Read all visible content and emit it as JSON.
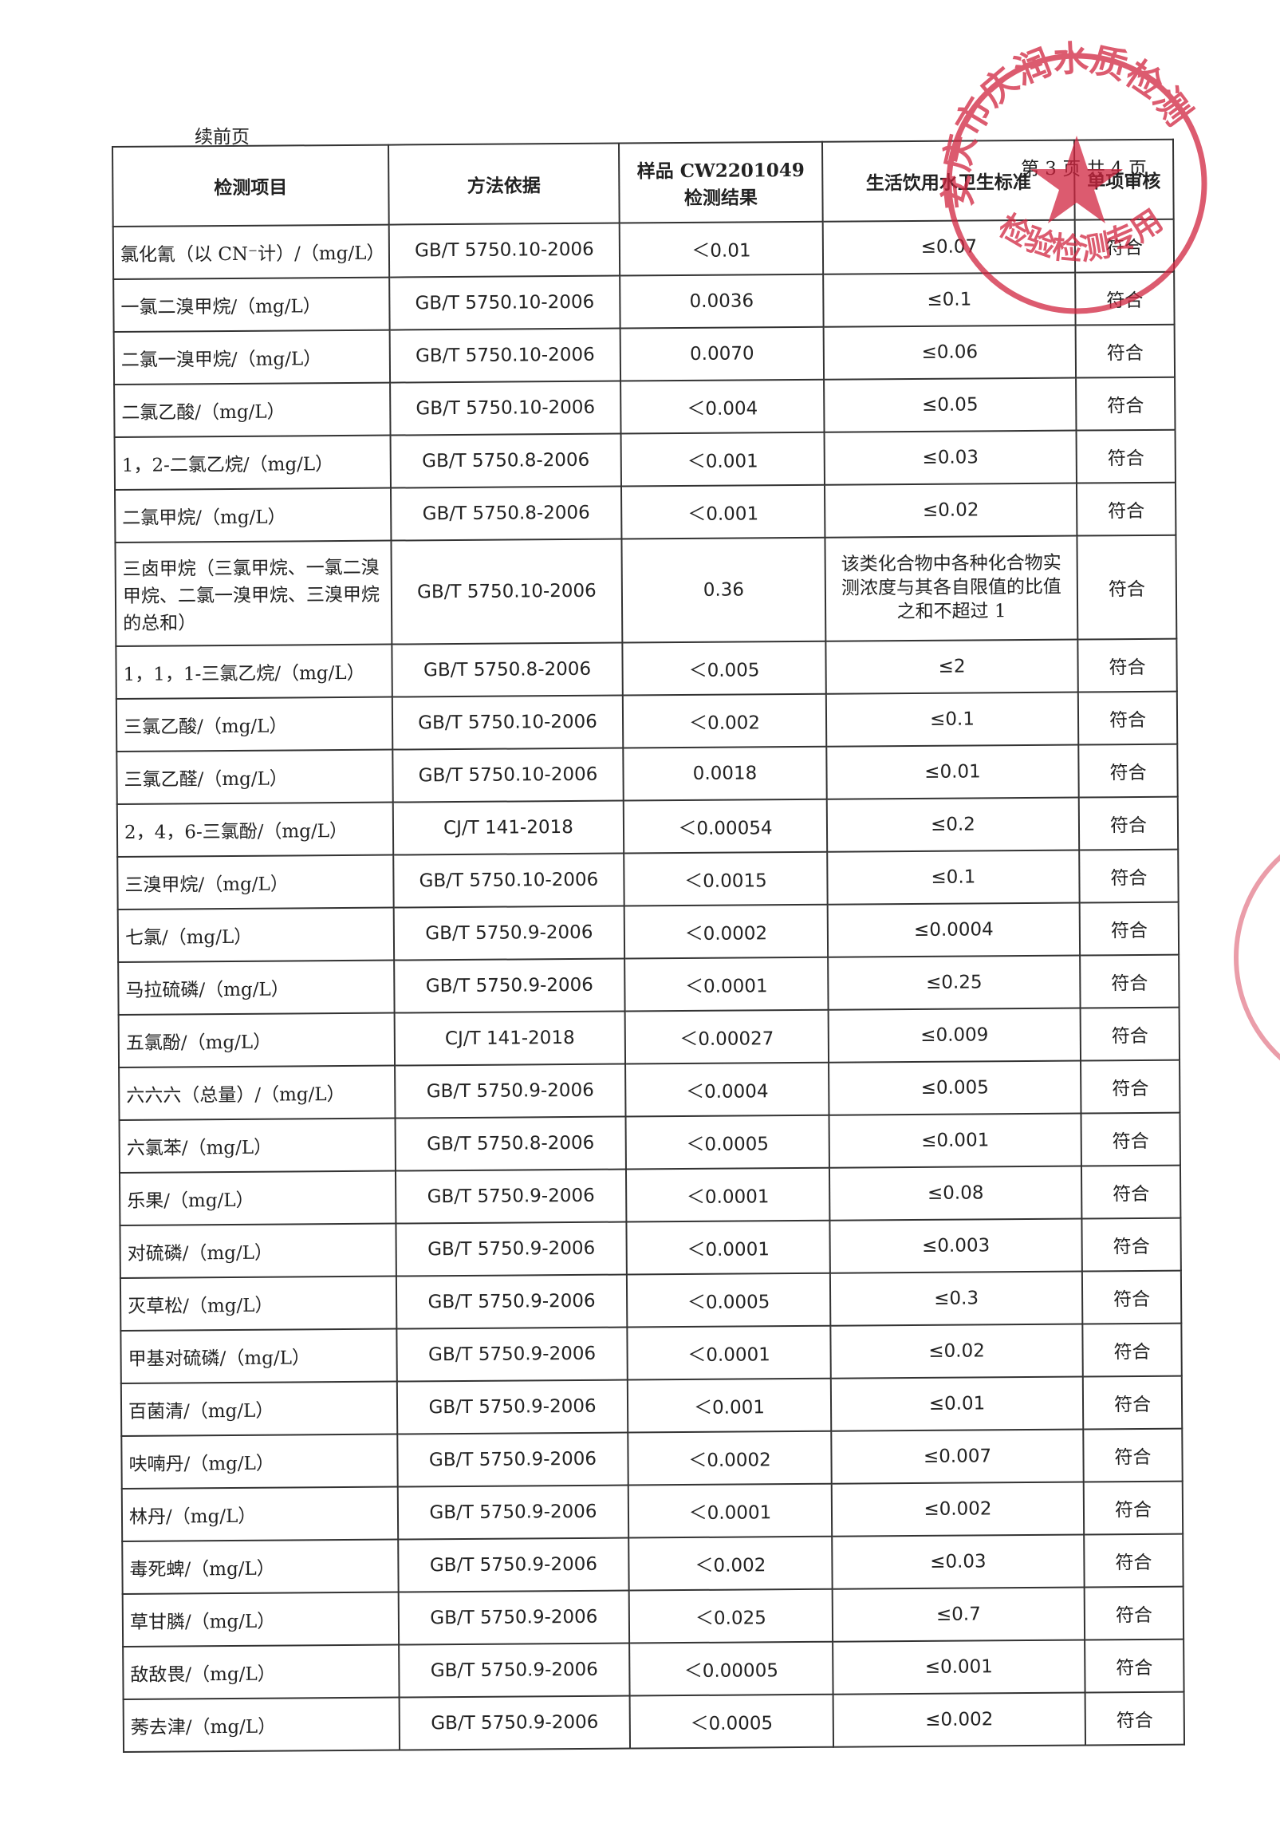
{
  "header": {
    "continued": "续前页",
    "page_number": "第 3 页 共 4 页"
  },
  "stamp": {
    "top_text": "安庆市庆润水质检测",
    "bottom_text": "检验检测专用章"
  },
  "table": {
    "columns": [
      "检测项目",
      "方法依据",
      "样品 CW2201049 检测结果",
      "生活饮用水卫生标准",
      "单项审核"
    ],
    "rows": [
      [
        "氯化氰（以 CN⁻计）/（mg/L）",
        "GB/T 5750.10-2006",
        "＜0.01",
        "≤0.07",
        "符合"
      ],
      [
        "一氯二溴甲烷/（mg/L）",
        "GB/T 5750.10-2006",
        "0.0036",
        "≤0.1",
        "符合"
      ],
      [
        "二氯一溴甲烷/（mg/L）",
        "GB/T 5750.10-2006",
        "0.0070",
        "≤0.06",
        "符合"
      ],
      [
        "二氯乙酸/（mg/L）",
        "GB/T 5750.10-2006",
        "＜0.004",
        "≤0.05",
        "符合"
      ],
      [
        "1，2-二氯乙烷/（mg/L）",
        "GB/T 5750.8-2006",
        "＜0.001",
        "≤0.03",
        "符合"
      ],
      [
        "二氯甲烷/（mg/L）",
        "GB/T 5750.8-2006",
        "＜0.001",
        "≤0.02",
        "符合"
      ],
      [
        "三卤甲烷（三氯甲烷、一氯二溴甲烷、二氯一溴甲烷、三溴甲烷的总和）",
        "GB/T 5750.10-2006",
        "0.36",
        "该类化合物中各种化合物实测浓度与其各自限值的比值之和不超过 1",
        "符合"
      ],
      [
        "1，1，1-三氯乙烷/（mg/L）",
        "GB/T 5750.8-2006",
        "＜0.005",
        "≤2",
        "符合"
      ],
      [
        "三氯乙酸/（mg/L）",
        "GB/T 5750.10-2006",
        "＜0.002",
        "≤0.1",
        "符合"
      ],
      [
        "三氯乙醛/（mg/L）",
        "GB/T 5750.10-2006",
        "0.0018",
        "≤0.01",
        "符合"
      ],
      [
        "2，4，6-三氯酚/（mg/L）",
        "CJ/T 141-2018",
        "＜0.00054",
        "≤0.2",
        "符合"
      ],
      [
        "三溴甲烷/（mg/L）",
        "GB/T 5750.10-2006",
        "＜0.0015",
        "≤0.1",
        "符合"
      ],
      [
        "七氯/（mg/L）",
        "GB/T 5750.9-2006",
        "＜0.0002",
        "≤0.0004",
        "符合"
      ],
      [
        "马拉硫磷/（mg/L）",
        "GB/T 5750.9-2006",
        "＜0.0001",
        "≤0.25",
        "符合"
      ],
      [
        "五氯酚/（mg/L）",
        "CJ/T 141-2018",
        "＜0.00027",
        "≤0.009",
        "符合"
      ],
      [
        "六六六（总量）/（mg/L）",
        "GB/T 5750.9-2006",
        "＜0.0004",
        "≤0.005",
        "符合"
      ],
      [
        "六氯苯/（mg/L）",
        "GB/T 5750.8-2006",
        "＜0.0005",
        "≤0.001",
        "符合"
      ],
      [
        "乐果/（mg/L）",
        "GB/T 5750.9-2006",
        "＜0.0001",
        "≤0.08",
        "符合"
      ],
      [
        "对硫磷/（mg/L）",
        "GB/T 5750.9-2006",
        "＜0.0001",
        "≤0.003",
        "符合"
      ],
      [
        "灭草松/（mg/L）",
        "GB/T 5750.9-2006",
        "＜0.0005",
        "≤0.3",
        "符合"
      ],
      [
        "甲基对硫磷/（mg/L）",
        "GB/T 5750.9-2006",
        "＜0.0001",
        "≤0.02",
        "符合"
      ],
      [
        "百菌清/（mg/L）",
        "GB/T 5750.9-2006",
        "＜0.001",
        "≤0.01",
        "符合"
      ],
      [
        "呋喃丹/（mg/L）",
        "GB/T 5750.9-2006",
        "＜0.0002",
        "≤0.007",
        "符合"
      ],
      [
        "林丹/（mg/L）",
        "GB/T 5750.9-2006",
        "＜0.0001",
        "≤0.002",
        "符合"
      ],
      [
        "毒死蜱/（mg/L）",
        "GB/T 5750.9-2006",
        "＜0.002",
        "≤0.03",
        "符合"
      ],
      [
        "草甘膦/（mg/L）",
        "GB/T 5750.9-2006",
        "＜0.025",
        "≤0.7",
        "符合"
      ],
      [
        "敌敌畏/（mg/L）",
        "GB/T 5750.9-2006",
        "＜0.00005",
        "≤0.001",
        "符合"
      ],
      [
        "莠去津/（mg/L）",
        "GB/T 5750.9-2006",
        "＜0.0005",
        "≤0.002",
        "符合"
      ]
    ]
  }
}
